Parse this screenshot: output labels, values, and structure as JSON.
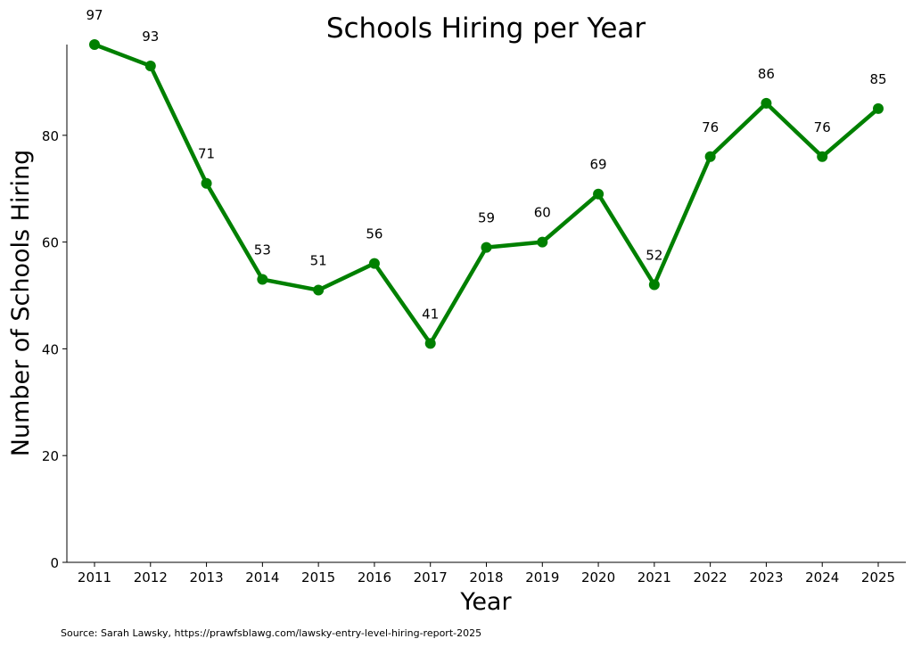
{
  "chart_data": {
    "type": "line",
    "title": "Schools Hiring per Year",
    "xlabel": "Year",
    "ylabel": "Number of Schools Hiring",
    "x": [
      "2011",
      "2012",
      "2013",
      "2014",
      "2015",
      "2016",
      "2017",
      "2018",
      "2019",
      "2020",
      "2021",
      "2022",
      "2023",
      "2024",
      "2025"
    ],
    "series": [
      {
        "values": [
          97,
          93,
          71,
          53,
          51,
          56,
          41,
          59,
          60,
          69,
          52,
          76,
          86,
          76,
          85
        ]
      }
    ],
    "data_labels": [
      "97",
      "93",
      "71",
      "53",
      "51",
      "56",
      "41",
      "59",
      "60",
      "69",
      "52",
      "76",
      "86",
      "76",
      "85"
    ],
    "yticks": [
      0,
      20,
      40,
      60,
      80
    ],
    "ylim": [
      0,
      97
    ],
    "grid": false,
    "line_color": "#008000",
    "source": "Source: Sarah Lawsky, https://prawfsblawg.com/lawsky-entry-level-hiring-report-2025"
  }
}
